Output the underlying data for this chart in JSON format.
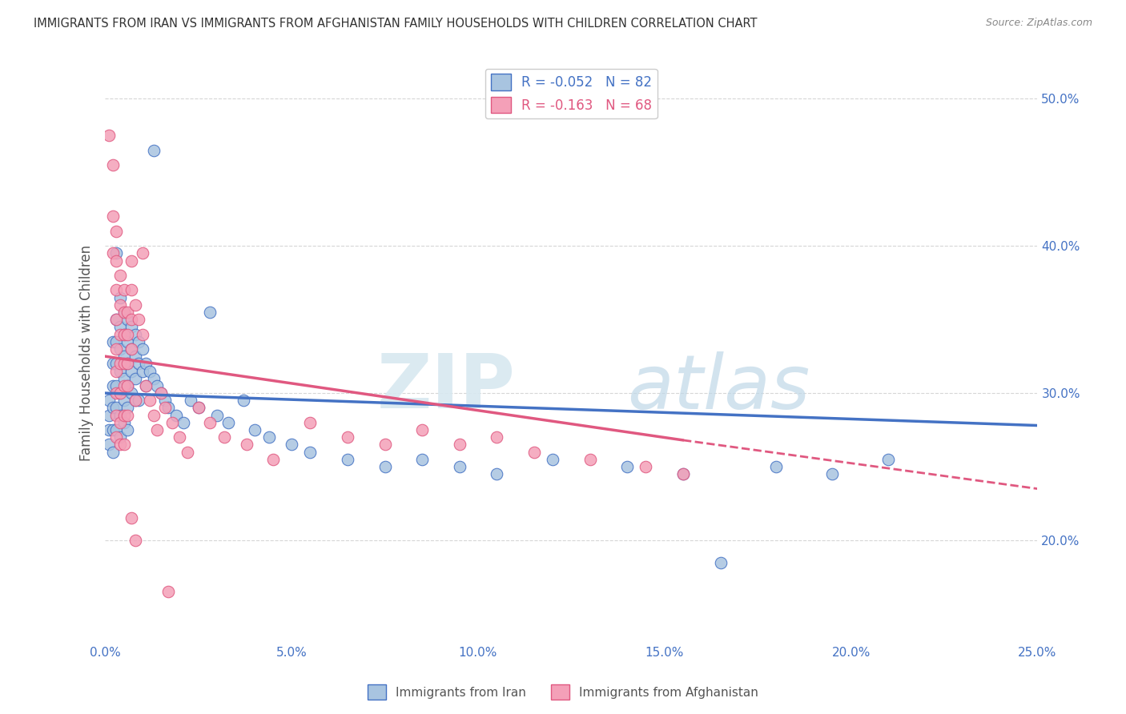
{
  "title": "IMMIGRANTS FROM IRAN VS IMMIGRANTS FROM AFGHANISTAN FAMILY HOUSEHOLDS WITH CHILDREN CORRELATION CHART",
  "source": "Source: ZipAtlas.com",
  "ylabel": "Family Households with Children",
  "legend_iran": "Immigrants from Iran",
  "legend_afghanistan": "Immigrants from Afghanistan",
  "R_iran": -0.052,
  "N_iran": 82,
  "R_afghanistan": -0.163,
  "N_afghanistan": 68,
  "xlim": [
    0.0,
    0.25
  ],
  "ylim": [
    0.13,
    0.525
  ],
  "xticks": [
    0.0,
    0.05,
    0.1,
    0.15,
    0.2,
    0.25
  ],
  "yticks": [
    0.2,
    0.3,
    0.4,
    0.5
  ],
  "color_iran": "#a8c4e0",
  "color_iran_line": "#4472c4",
  "color_afghanistan": "#f4a0b8",
  "color_afghanistan_line": "#e05880",
  "watermark_zip": "ZIP",
  "watermark_atlas": "atlas",
  "background_color": "#ffffff",
  "grid_color": "#cccccc",
  "axis_label_color": "#4472c4",
  "iran_scatter": [
    [
      0.001,
      0.295
    ],
    [
      0.001,
      0.285
    ],
    [
      0.001,
      0.275
    ],
    [
      0.001,
      0.265
    ],
    [
      0.002,
      0.335
    ],
    [
      0.002,
      0.32
    ],
    [
      0.002,
      0.305
    ],
    [
      0.002,
      0.29
    ],
    [
      0.002,
      0.275
    ],
    [
      0.002,
      0.26
    ],
    [
      0.003,
      0.35
    ],
    [
      0.003,
      0.335
    ],
    [
      0.003,
      0.32
    ],
    [
      0.003,
      0.305
    ],
    [
      0.003,
      0.29
    ],
    [
      0.003,
      0.275
    ],
    [
      0.003,
      0.395
    ],
    [
      0.004,
      0.365
    ],
    [
      0.004,
      0.345
    ],
    [
      0.004,
      0.33
    ],
    [
      0.004,
      0.315
    ],
    [
      0.004,
      0.3
    ],
    [
      0.004,
      0.285
    ],
    [
      0.004,
      0.27
    ],
    [
      0.005,
      0.355
    ],
    [
      0.005,
      0.34
    ],
    [
      0.005,
      0.325
    ],
    [
      0.005,
      0.31
    ],
    [
      0.005,
      0.295
    ],
    [
      0.005,
      0.28
    ],
    [
      0.006,
      0.35
    ],
    [
      0.006,
      0.335
    ],
    [
      0.006,
      0.32
    ],
    [
      0.006,
      0.305
    ],
    [
      0.006,
      0.29
    ],
    [
      0.006,
      0.275
    ],
    [
      0.007,
      0.345
    ],
    [
      0.007,
      0.33
    ],
    [
      0.007,
      0.315
    ],
    [
      0.007,
      0.3
    ],
    [
      0.008,
      0.34
    ],
    [
      0.008,
      0.325
    ],
    [
      0.008,
      0.31
    ],
    [
      0.008,
      0.295
    ],
    [
      0.009,
      0.335
    ],
    [
      0.009,
      0.32
    ],
    [
      0.009,
      0.295
    ],
    [
      0.01,
      0.33
    ],
    [
      0.01,
      0.315
    ],
    [
      0.011,
      0.32
    ],
    [
      0.011,
      0.305
    ],
    [
      0.012,
      0.315
    ],
    [
      0.013,
      0.465
    ],
    [
      0.013,
      0.31
    ],
    [
      0.014,
      0.305
    ],
    [
      0.015,
      0.3
    ],
    [
      0.016,
      0.295
    ],
    [
      0.017,
      0.29
    ],
    [
      0.019,
      0.285
    ],
    [
      0.021,
      0.28
    ],
    [
      0.023,
      0.295
    ],
    [
      0.025,
      0.29
    ],
    [
      0.028,
      0.355
    ],
    [
      0.03,
      0.285
    ],
    [
      0.033,
      0.28
    ],
    [
      0.037,
      0.295
    ],
    [
      0.04,
      0.275
    ],
    [
      0.044,
      0.27
    ],
    [
      0.05,
      0.265
    ],
    [
      0.055,
      0.26
    ],
    [
      0.065,
      0.255
    ],
    [
      0.075,
      0.25
    ],
    [
      0.085,
      0.255
    ],
    [
      0.095,
      0.25
    ],
    [
      0.105,
      0.245
    ],
    [
      0.12,
      0.255
    ],
    [
      0.14,
      0.25
    ],
    [
      0.155,
      0.245
    ],
    [
      0.165,
      0.185
    ],
    [
      0.18,
      0.25
    ],
    [
      0.195,
      0.245
    ],
    [
      0.21,
      0.255
    ]
  ],
  "afghanistan_scatter": [
    [
      0.001,
      0.475
    ],
    [
      0.002,
      0.455
    ],
    [
      0.002,
      0.42
    ],
    [
      0.002,
      0.395
    ],
    [
      0.003,
      0.41
    ],
    [
      0.003,
      0.39
    ],
    [
      0.003,
      0.37
    ],
    [
      0.003,
      0.35
    ],
    [
      0.003,
      0.33
    ],
    [
      0.003,
      0.315
    ],
    [
      0.003,
      0.3
    ],
    [
      0.003,
      0.285
    ],
    [
      0.003,
      0.27
    ],
    [
      0.004,
      0.38
    ],
    [
      0.004,
      0.36
    ],
    [
      0.004,
      0.34
    ],
    [
      0.004,
      0.32
    ],
    [
      0.004,
      0.3
    ],
    [
      0.004,
      0.28
    ],
    [
      0.004,
      0.265
    ],
    [
      0.005,
      0.37
    ],
    [
      0.005,
      0.355
    ],
    [
      0.005,
      0.34
    ],
    [
      0.005,
      0.32
    ],
    [
      0.005,
      0.305
    ],
    [
      0.005,
      0.285
    ],
    [
      0.005,
      0.265
    ],
    [
      0.006,
      0.355
    ],
    [
      0.006,
      0.34
    ],
    [
      0.006,
      0.32
    ],
    [
      0.006,
      0.305
    ],
    [
      0.006,
      0.285
    ],
    [
      0.007,
      0.39
    ],
    [
      0.007,
      0.37
    ],
    [
      0.007,
      0.35
    ],
    [
      0.007,
      0.33
    ],
    [
      0.007,
      0.215
    ],
    [
      0.008,
      0.36
    ],
    [
      0.008,
      0.295
    ],
    [
      0.008,
      0.2
    ],
    [
      0.009,
      0.35
    ],
    [
      0.01,
      0.34
    ],
    [
      0.01,
      0.395
    ],
    [
      0.011,
      0.305
    ],
    [
      0.012,
      0.295
    ],
    [
      0.013,
      0.285
    ],
    [
      0.014,
      0.275
    ],
    [
      0.015,
      0.3
    ],
    [
      0.016,
      0.29
    ],
    [
      0.017,
      0.165
    ],
    [
      0.018,
      0.28
    ],
    [
      0.02,
      0.27
    ],
    [
      0.022,
      0.26
    ],
    [
      0.025,
      0.29
    ],
    [
      0.028,
      0.28
    ],
    [
      0.032,
      0.27
    ],
    [
      0.038,
      0.265
    ],
    [
      0.045,
      0.255
    ],
    [
      0.055,
      0.28
    ],
    [
      0.065,
      0.27
    ],
    [
      0.075,
      0.265
    ],
    [
      0.085,
      0.275
    ],
    [
      0.095,
      0.265
    ],
    [
      0.105,
      0.27
    ],
    [
      0.115,
      0.26
    ],
    [
      0.13,
      0.255
    ],
    [
      0.145,
      0.25
    ],
    [
      0.155,
      0.245
    ]
  ],
  "iran_trendline": [
    [
      0.0,
      0.3
    ],
    [
      0.25,
      0.278
    ]
  ],
  "afghanistan_trendline_solid": [
    [
      0.0,
      0.325
    ],
    [
      0.155,
      0.268
    ]
  ],
  "afghanistan_trendline_dashed": [
    [
      0.155,
      0.268
    ],
    [
      0.25,
      0.235
    ]
  ]
}
